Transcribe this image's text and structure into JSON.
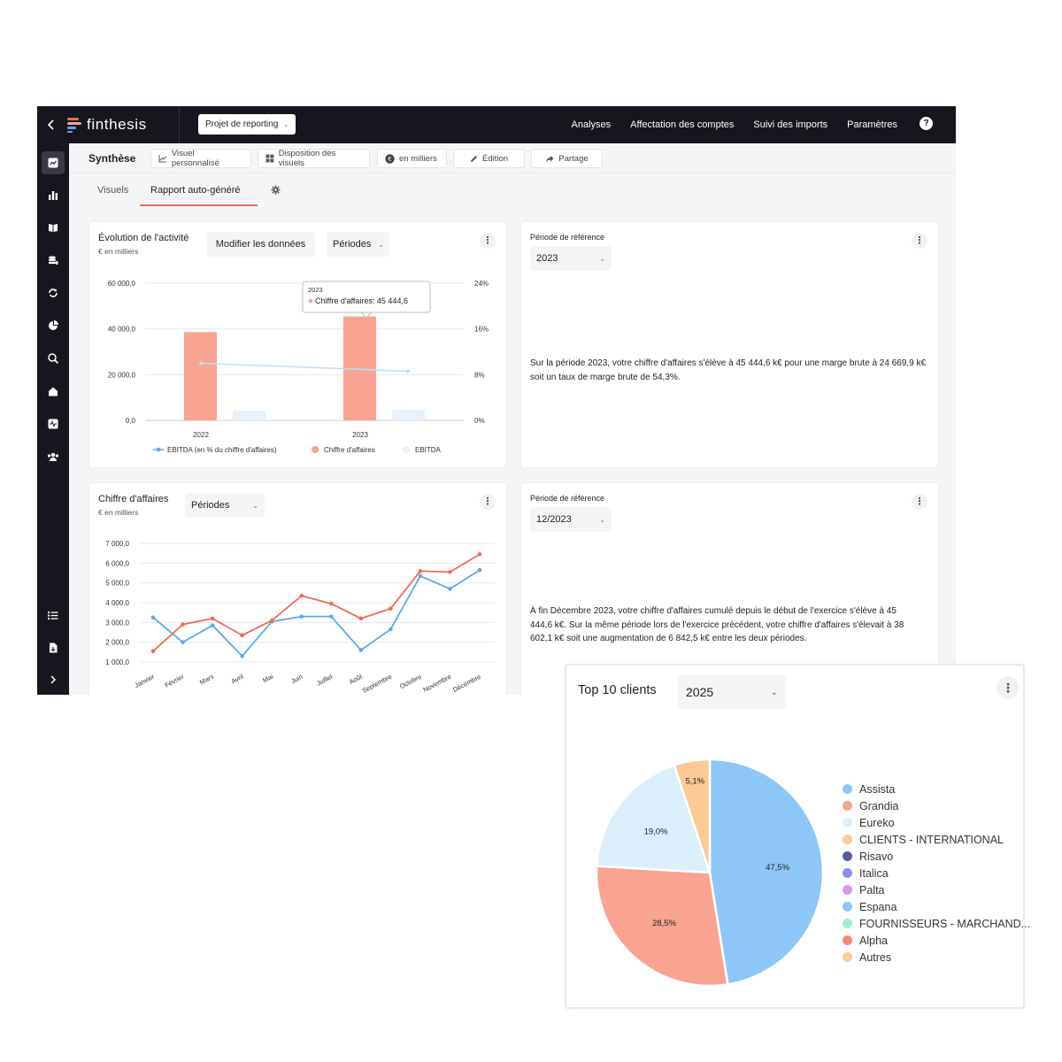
{
  "app": {
    "logo_text": "finthesis",
    "project_select": "Projet de reporting",
    "nav": [
      "Analyses",
      "Affectation des comptes",
      "Suivi des imports",
      "Paramètres"
    ],
    "help": "?"
  },
  "toolbar": {
    "title": "Synthèse",
    "buttons": [
      "Visuel personnalisé",
      "Disposition des visuels",
      "en milliers",
      "Édition",
      "Partage"
    ]
  },
  "subtabs": {
    "visuels": "Visuels",
    "rapport": "Rapport auto-généré"
  },
  "activity_card": {
    "title": "Évolution de l'activité",
    "subtitle": "€ en milliers",
    "modify_button": "Modifier les données",
    "period_select": "Périodes",
    "tooltip": {
      "year": "2023",
      "text": "Chiffre d'affaires: 45 444,6"
    },
    "legend": [
      "EBITDA (en % du chiffre d'affaires)",
      "Chiffre d'affaires",
      "EBITDA"
    ]
  },
  "ref_card_1": {
    "label": "Période de référence",
    "select": "2023",
    "text": "Sur la période 2023, votre chiffre d'affaires s'élève à 45 444,6 k€ pour une marge brute à 24 669,9 k€ soit un taux de marge brute de 54,3%."
  },
  "revenue_card": {
    "title": "Chiffre d'affaires",
    "subtitle": "€ en milliers",
    "period_select": "Périodes"
  },
  "ref_card_2": {
    "label": "Période de référence",
    "select": "12/2023",
    "text": "À fin Décembre 2023, votre chiffre d'affaires cumulé depuis le début de l'exercice s'élève à 45 444,6 k€. Sur la même période lors de l'exercice précédent, votre chiffre d'affaires s'élevait à 38 602,1 k€ soit une augmentation de 6 842,5 k€ entre les deux périodes."
  },
  "pie_card": {
    "title": "Top 10 clients",
    "year_select": "2025"
  },
  "colors": {
    "accent": "#f26b4f",
    "bar": "#f9a392",
    "blue": "#5aa9ee",
    "light_blue": "#dbeefc",
    "dark": "#17161f"
  },
  "chart_data": [
    {
      "type": "bar",
      "categories": [
        "2022",
        "2023"
      ],
      "series": [
        {
          "name": "Chiffre d'affaires",
          "axis": "left",
          "values": [
            38602.1,
            45444.6
          ],
          "color": "#f9a392"
        },
        {
          "name": "EBITDA",
          "axis": "left",
          "values": [
            4200,
            4500
          ],
          "color": "#e5f1fc"
        },
        {
          "name": "EBITDA (en % du chiffre d'affaires)",
          "axis": "right",
          "type": "line",
          "values": [
            0.1,
            0.1
          ],
          "color": "#bfdcf7"
        }
      ],
      "ylim": [
        0,
        60000
      ],
      "yticks": [
        "0,0",
        "20 000,0",
        "40 000,0",
        "60 000,0"
      ],
      "ylim_right": [
        0,
        0.24
      ],
      "yticks_right": [
        "0%",
        "8%",
        "16%",
        "24%"
      ],
      "grid": true,
      "legend": "bottom"
    },
    {
      "type": "line",
      "categories": [
        "Janvier",
        "Février",
        "Mars",
        "Avril",
        "Mai",
        "Juin",
        "Juillet",
        "Août",
        "Septembre",
        "Octobre",
        "Novembre",
        "Décembre"
      ],
      "series": [
        {
          "name": "",
          "color": "#f26b4f",
          "values": [
            1550,
            2900,
            3200,
            2350,
            3100,
            4350,
            3950,
            3200,
            3700,
            5600,
            5550,
            6450
          ]
        },
        {
          "name": "",
          "color": "#5aa9ee",
          "values": [
            3250,
            2000,
            2850,
            1300,
            3050,
            3300,
            3300,
            1600,
            2650,
            5350,
            4700,
            5650
          ]
        }
      ],
      "ylim": [
        1000,
        7000
      ],
      "yticks": [
        "1 000,0",
        "2 000,0",
        "3 000,0",
        "4 000,0",
        "5 000,0",
        "6 000,0",
        "7 000,0"
      ],
      "grid": true
    },
    {
      "type": "pie",
      "labels": [
        "Assista",
        "Grandia",
        "Eureko",
        "CLIENTS - INTERNATIONAL",
        "Risavo",
        "Italica",
        "Palta",
        "Espana",
        "FOURNISSEURS - MARCHAND...",
        "Alpha",
        "Autres"
      ],
      "colors": [
        "#8ec6f8",
        "#f9a392",
        "#dbeefc",
        "#fdc994",
        "#555aa3",
        "#8a8df0",
        "#d49bf6",
        "#8ec6f8",
        "#9ef0d4",
        "#f9877a",
        "#fdc994"
      ],
      "slices": [
        {
          "label": "Assista",
          "value": 47.5,
          "display": "47,5%",
          "color": "#8ec6f8"
        },
        {
          "label": "Grandia",
          "value": 28.5,
          "display": "28,5%",
          "color": "#f9a392"
        },
        {
          "label": "Eureko",
          "value": 19.0,
          "display": "19,0%",
          "color": "#dbeefc"
        },
        {
          "label": "CLIENTS - INTERNATIONAL",
          "value": 5.1,
          "display": "5,1%",
          "color": "#fdc994"
        }
      ],
      "legend": "right"
    }
  ]
}
